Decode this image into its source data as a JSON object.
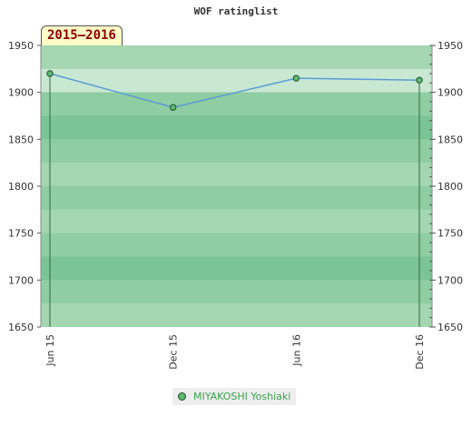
{
  "chart_data": {
    "type": "line",
    "title": "WOF ratinglist",
    "season_label": "2015–2016",
    "x": [
      "Jun 15",
      "Dec 15",
      "Jun 16",
      "Dec 16"
    ],
    "series": [
      {
        "name": "MIYAKOSHI Yoshiaki",
        "values": [
          1920,
          1884,
          1915,
          1913
        ]
      }
    ],
    "ylim": [
      1650,
      1950
    ],
    "yticks": [
      1650,
      1700,
      1750,
      1800,
      1850,
      1900,
      1950
    ],
    "right_axis": true,
    "grid": "banded",
    "legend_position": "bottom-center",
    "colors": {
      "line": "#5b9bd5",
      "marker": "#5fb86f",
      "band_dark": "#7bc495",
      "band_mid": "#8fcda2",
      "band_light": "#a3d6b1",
      "band_pale": "#c8e8d2"
    }
  }
}
